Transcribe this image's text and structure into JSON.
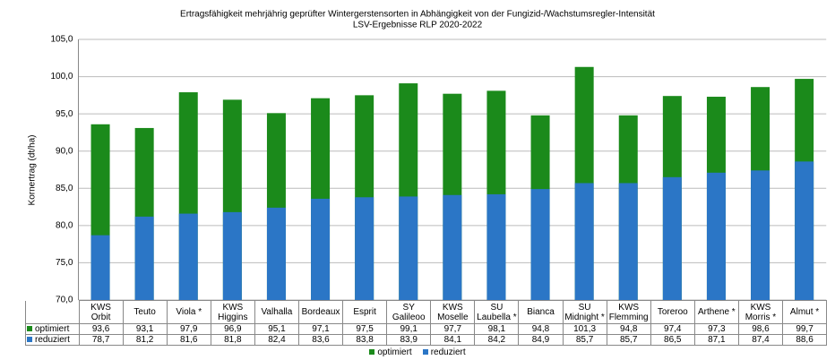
{
  "chart_data": {
    "type": "bar",
    "title": "Ertragsfähigkeit mehrjährig geprüfter Wintergerstensorten in Abhängigkeit von der Fungizid-/Wachstumsregler-Intensität",
    "subtitle": "LSV-Ergebnisse RLP 2020-2022",
    "y_label": "Kornertrag (dt/ha)",
    "categories": [
      "KWS Orbit",
      "Teuto",
      "Viola *",
      "KWS Higgins",
      "Valhalla",
      "Bordeaux",
      "Esprit",
      "SY Galileoo",
      "KWS Moselle",
      "SU Laubella *",
      "Bianca",
      "SU Midnight *",
      "KWS Flemming",
      "Toreroo",
      "Arthene *",
      "KWS Morris *",
      "Almut *"
    ],
    "series": [
      {
        "name": "optimiert",
        "color": "#1b8a1b",
        "values": [
          93.6,
          93.1,
          97.9,
          96.9,
          95.1,
          97.1,
          97.5,
          99.1,
          97.7,
          98.1,
          94.8,
          101.3,
          94.8,
          97.4,
          97.3,
          98.6,
          99.7
        ],
        "value_labels": [
          "93,6",
          "93,1",
          "97,9",
          "96,9",
          "95,1",
          "97,1",
          "97,5",
          "99,1",
          "97,7",
          "98,1",
          "94,8",
          "101,3",
          "94,8",
          "97,4",
          "97,3",
          "98,6",
          "99,7"
        ]
      },
      {
        "name": "reduziert",
        "color": "#2b76c6",
        "values": [
          78.7,
          81.2,
          81.6,
          81.8,
          82.4,
          83.6,
          83.8,
          83.9,
          84.1,
          84.2,
          84.9,
          85.7,
          85.7,
          86.5,
          87.1,
          87.4,
          88.6
        ],
        "value_labels": [
          "78,7",
          "81,2",
          "81,6",
          "81,8",
          "82,4",
          "83,6",
          "83,8",
          "83,9",
          "84,1",
          "84,2",
          "84,9",
          "85,7",
          "85,7",
          "86,5",
          "87,1",
          "87,4",
          "88,6"
        ]
      }
    ],
    "ylim": [
      70,
      105
    ],
    "yticks": [
      {
        "value": 70,
        "label": "70,0"
      },
      {
        "value": 75,
        "label": "75,0"
      },
      {
        "value": 80,
        "label": "80,0"
      },
      {
        "value": 85,
        "label": "85,0"
      },
      {
        "value": 90,
        "label": "90,0"
      },
      {
        "value": 95,
        "label": "95,0"
      },
      {
        "value": 100,
        "label": "100,0"
      },
      {
        "value": 105,
        "label": "105,0"
      }
    ],
    "grid": true,
    "legend": "bottom"
  }
}
